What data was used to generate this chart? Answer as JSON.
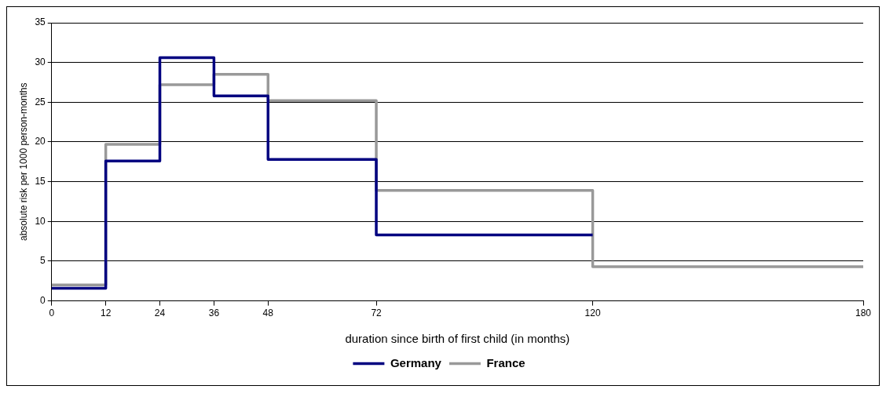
{
  "chart_data": {
    "type": "step",
    "xlabel": "duration since birth of first child (in months)",
    "ylabel": "absolute risk per 1000 person-months",
    "xlim": [
      0,
      180
    ],
    "xticks": [
      0,
      12,
      24,
      36,
      48,
      72,
      120,
      180
    ],
    "ylim": [
      0,
      35
    ],
    "yticks": [
      0,
      5,
      10,
      15,
      20,
      25,
      30,
      35
    ],
    "grid": "y",
    "legend": "bottom",
    "marker": "none",
    "line_style": "solid",
    "series": [
      {
        "name": "Germany",
        "color": "#000080",
        "x": [
          0,
          12,
          24,
          36,
          48,
          72,
          120
        ],
        "values": [
          1.6,
          17.6,
          30.6,
          25.8,
          17.8,
          8.3,
          8.3
        ]
      },
      {
        "name": "France",
        "color": "#999999",
        "x": [
          0,
          12,
          24,
          36,
          48,
          72,
          120,
          180
        ],
        "values": [
          2.0,
          19.7,
          27.2,
          28.5,
          25.2,
          13.9,
          4.3,
          4.3
        ]
      }
    ]
  }
}
